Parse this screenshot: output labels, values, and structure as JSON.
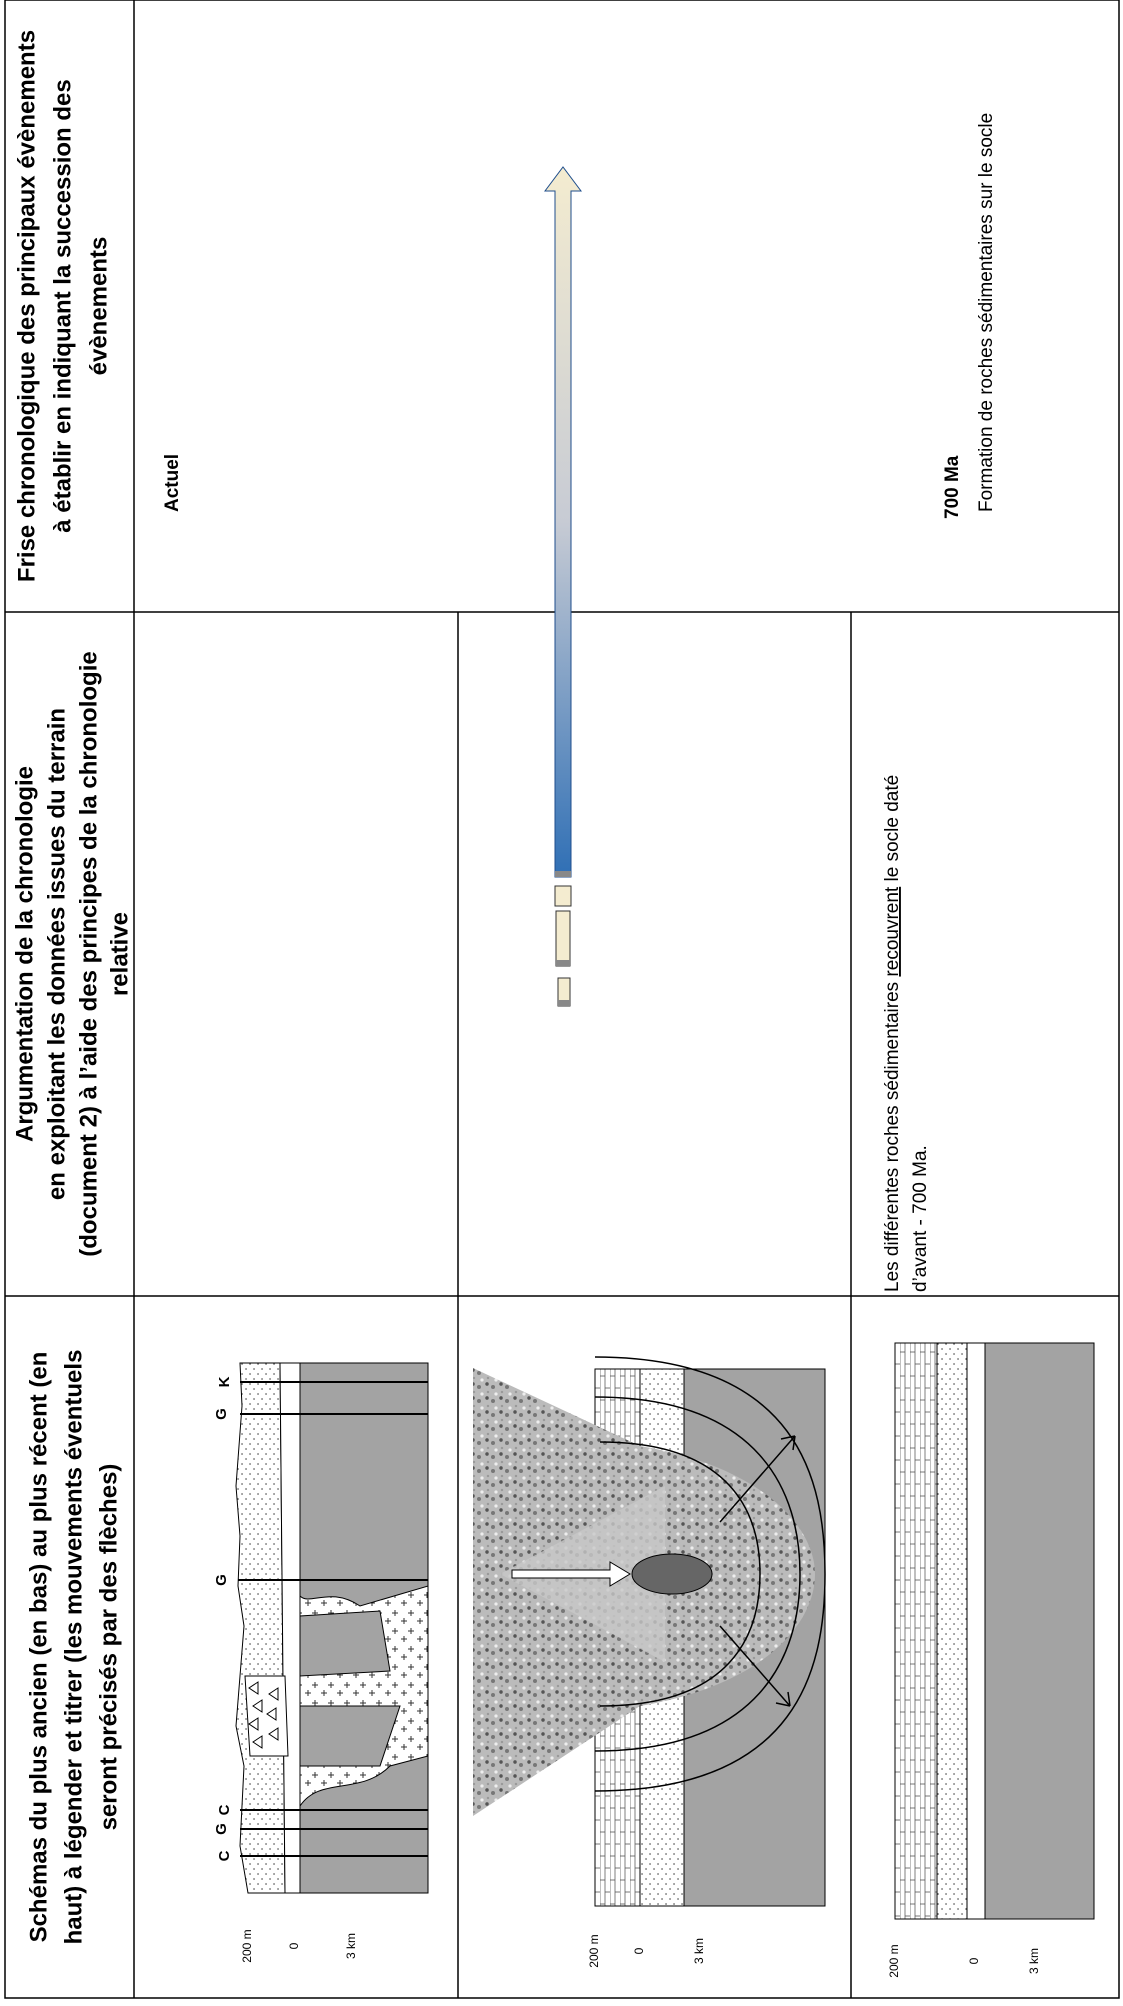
{
  "header": {
    "col1": [
      "Schémas du plus ancien (en bas) au plus récent (en",
      "haut) à légender et titrer (les mouvements éventuels",
      "seront précisés par des flèches)"
    ],
    "col2": [
      "Argumentation de la chronologie",
      "en exploitant les données issues du terrain",
      "(document 2) à l’aide des principes de la chronologie",
      "relative"
    ],
    "col3": [
      "Frise chronologique des principaux évènements",
      "à établir en indiquant la succession des",
      "évènements"
    ]
  },
  "schemas": {
    "row1": {
      "labels": [
        "C",
        "G",
        "C",
        "G",
        "G",
        "K"
      ],
      "scale": [
        "200 m",
        "0",
        "3 km"
      ]
    },
    "row2": {
      "scale": [
        "200 m",
        "0",
        "3 km"
      ]
    },
    "row3": {
      "scale": [
        "200 m",
        "0",
        "3 km"
      ]
    }
  },
  "argumentation": {
    "row3": {
      "line1": [
        "Les différentes roches sédimentaires ",
        "recouvrent",
        " le socle daté"
      ],
      "line2": "d’avant - 700 Ma."
    }
  },
  "frise": {
    "now": "Actuel",
    "event": {
      "date": "700 Ma",
      "label": "Formation de roches sédimentaires sur le socle"
    }
  }
}
